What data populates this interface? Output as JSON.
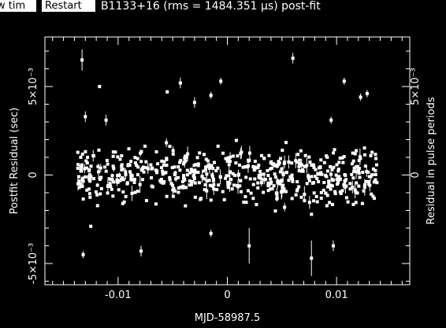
{
  "toolbar": {
    "view_label": "w tim",
    "restart_label": "Restart"
  },
  "title": "B1133+16 (rms = 1484.351 μs) post-fit",
  "colors": {
    "background": "#000000",
    "foreground": "#ffffff",
    "button_bg": "#ffffff",
    "button_fg": "#000000"
  },
  "chart_data": {
    "type": "scatter",
    "title": "B1133+16 (rms = 1484.351 μs) post-fit",
    "xlabel": "MJD-58987.5",
    "ylabel": "Postfit Residual (sec)",
    "ylabel_right": "Residual in pulse periods",
    "xlim": [
      -0.0167,
      0.0167
    ],
    "ylim": [
      -0.0062,
      0.0078
    ],
    "xticks": [
      {
        "v": -0.01,
        "label": "-0.01"
      },
      {
        "v": 0,
        "label": "0"
      },
      {
        "v": 0.01,
        "label": "0.01"
      }
    ],
    "yticks": [
      {
        "v": -0.005,
        "label": "-5×10⁻³"
      },
      {
        "v": 0,
        "label": "0"
      },
      {
        "v": 0.005,
        "label": "5×10⁻³"
      }
    ],
    "yticks_right": [
      {
        "v": 0,
        "label": "0"
      },
      {
        "v": 0.005,
        "label": "5×10⁻³"
      }
    ],
    "grid": false,
    "n_points_approx": 620,
    "highlight_points": [
      {
        "x": -0.0133,
        "y": 0.0065,
        "err": 0.0006
      },
      {
        "x": -0.0132,
        "y": -0.0045,
        "err": 0.0002
      },
      {
        "x": -0.013,
        "y": 0.0033,
        "err": 0.0003
      },
      {
        "x": -0.0117,
        "y": 0.005,
        "err": 0.0001
      },
      {
        "x": -0.0111,
        "y": 0.0031,
        "err": 0.0003
      },
      {
        "x": -0.0125,
        "y": -0.0029,
        "err": 0.0001
      },
      {
        "x": -0.0079,
        "y": -0.0043,
        "err": 0.0003
      },
      {
        "x": -0.0055,
        "y": 0.0047,
        "err": 0.0001
      },
      {
        "x": -0.0043,
        "y": 0.0052,
        "err": 0.0003
      },
      {
        "x": -0.003,
        "y": 0.0041,
        "err": 0.0003
      },
      {
        "x": -0.0015,
        "y": 0.0045,
        "err": 0.0002
      },
      {
        "x": -0.0006,
        "y": 0.0053,
        "err": 0.0002
      },
      {
        "x": 0.006,
        "y": 0.0066,
        "err": 0.0003
      },
      {
        "x": 0.0077,
        "y": -0.0047,
        "err": 0.001
      },
      {
        "x": 0.0095,
        "y": 0.0031,
        "err": 0.0002
      },
      {
        "x": 0.0107,
        "y": 0.0053,
        "err": 0.0002
      },
      {
        "x": 0.0122,
        "y": 0.0044,
        "err": 0.0002
      },
      {
        "x": 0.0128,
        "y": 0.0046,
        "err": 0.0002
      },
      {
        "x": 0.002,
        "y": -0.004,
        "err": 0.001
      },
      {
        "x": -0.0015,
        "y": -0.0033,
        "err": 0.0002
      },
      {
        "x": 0.0097,
        "y": -0.004,
        "err": 0.0003
      }
    ]
  }
}
